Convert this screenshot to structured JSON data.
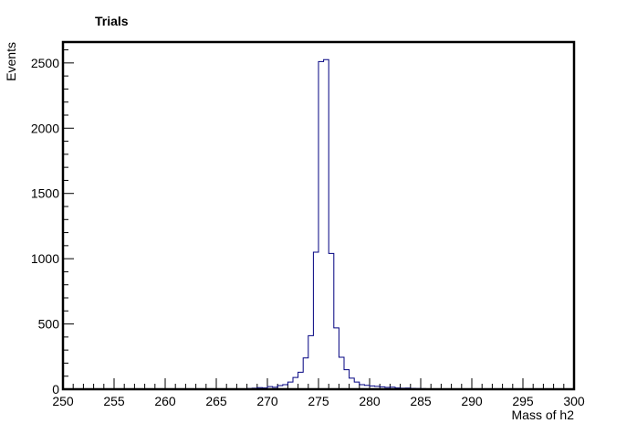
{
  "chart_data": {
    "type": "histogram",
    "title": "Trials",
    "xlabel": "Mass of h2",
    "ylabel": "Events",
    "xlim": [
      250,
      300
    ],
    "ylim": [
      0,
      2660
    ],
    "bin_width": 0.5,
    "grid": false,
    "legend": "none",
    "line_color": "#000080",
    "x_ticks": [
      250,
      255,
      260,
      265,
      270,
      275,
      280,
      285,
      290,
      295,
      300
    ],
    "y_ticks": [
      0,
      500,
      1000,
      1500,
      2000,
      2500
    ],
    "bins": [
      {
        "x": 266.0,
        "y": 2
      },
      {
        "x": 266.5,
        "y": 2
      },
      {
        "x": 267.0,
        "y": 3
      },
      {
        "x": 267.5,
        "y": 3
      },
      {
        "x": 268.0,
        "y": 5
      },
      {
        "x": 268.5,
        "y": 8
      },
      {
        "x": 269.0,
        "y": 12
      },
      {
        "x": 269.5,
        "y": 10
      },
      {
        "x": 270.0,
        "y": 20
      },
      {
        "x": 270.5,
        "y": 15
      },
      {
        "x": 271.0,
        "y": 28
      },
      {
        "x": 271.5,
        "y": 35
      },
      {
        "x": 272.0,
        "y": 55
      },
      {
        "x": 272.5,
        "y": 90
      },
      {
        "x": 273.0,
        "y": 130
      },
      {
        "x": 273.5,
        "y": 240
      },
      {
        "x": 274.0,
        "y": 410
      },
      {
        "x": 274.5,
        "y": 1050
      },
      {
        "x": 275.0,
        "y": 2510
      },
      {
        "x": 275.5,
        "y": 2525
      },
      {
        "x": 276.0,
        "y": 1040
      },
      {
        "x": 276.5,
        "y": 470
      },
      {
        "x": 277.0,
        "y": 245
      },
      {
        "x": 277.5,
        "y": 150
      },
      {
        "x": 278.0,
        "y": 85
      },
      {
        "x": 278.5,
        "y": 55
      },
      {
        "x": 279.0,
        "y": 35
      },
      {
        "x": 279.5,
        "y": 30
      },
      {
        "x": 280.0,
        "y": 25
      },
      {
        "x": 280.5,
        "y": 22
      },
      {
        "x": 281.0,
        "y": 18
      },
      {
        "x": 281.5,
        "y": 14
      },
      {
        "x": 282.0,
        "y": 16
      },
      {
        "x": 282.5,
        "y": 10
      },
      {
        "x": 283.0,
        "y": 8
      },
      {
        "x": 283.5,
        "y": 9
      },
      {
        "x": 284.0,
        "y": 6
      },
      {
        "x": 284.5,
        "y": 5
      },
      {
        "x": 285.0,
        "y": 4
      },
      {
        "x": 285.5,
        "y": 3
      },
      {
        "x": 286.0,
        "y": 3
      },
      {
        "x": 286.5,
        "y": 2
      },
      {
        "x": 287.0,
        "y": 2
      },
      {
        "x": 287.5,
        "y": 2
      },
      {
        "x": 288.0,
        "y": 1
      },
      {
        "x": 288.5,
        "y": 1
      }
    ]
  }
}
